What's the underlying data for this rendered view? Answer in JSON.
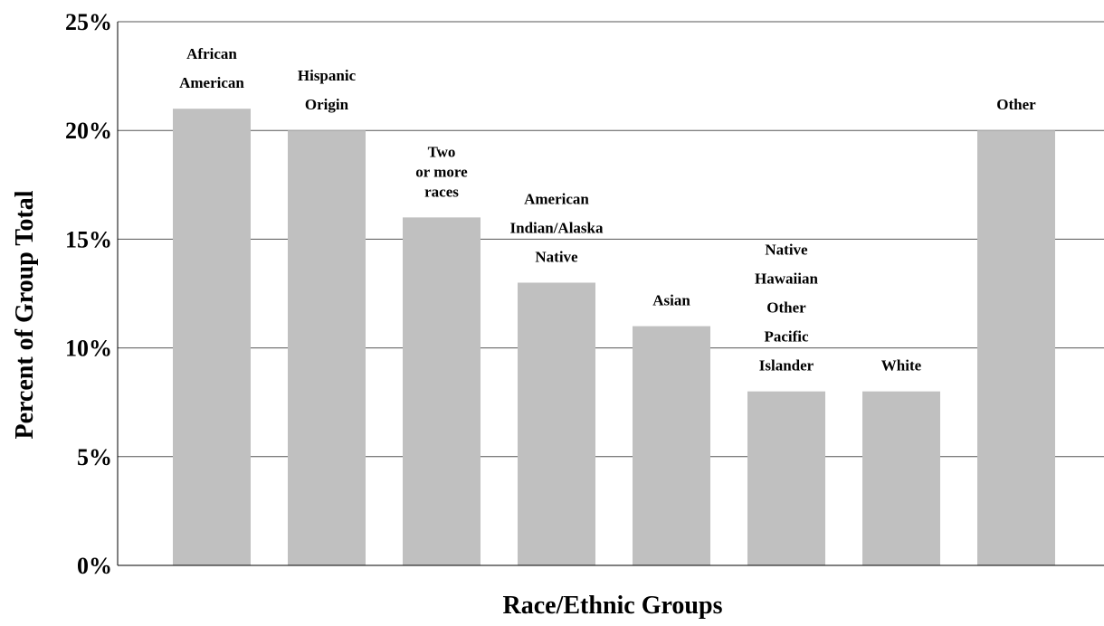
{
  "chart_data": {
    "type": "bar",
    "xlabel": "Race/Ethnic Groups",
    "ylabel": "Percent of Group Total",
    "ylim": [
      0,
      25
    ],
    "yticks": [
      "0%",
      "5%",
      "10%",
      "15%",
      "20%",
      "25%"
    ],
    "grid": true,
    "categories": [
      [
        "African",
        "American"
      ],
      [
        "Hispanic",
        "Origin"
      ],
      [
        "Two",
        "or more",
        "races"
      ],
      [
        "American",
        "Indian/Alaska",
        "Native"
      ],
      [
        "Asian"
      ],
      [
        "Native",
        "Hawaiian",
        "Other",
        "Pacific",
        "Islander"
      ],
      [
        "White"
      ],
      [
        "Other"
      ]
    ],
    "values": [
      21,
      20,
      16,
      13,
      11,
      8,
      8,
      20
    ],
    "colors": {
      "bar": "#c0c0c0",
      "grid": "#555555"
    }
  }
}
